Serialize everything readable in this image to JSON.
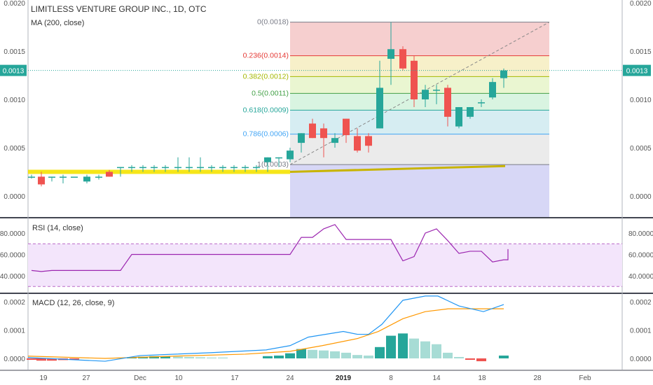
{
  "header": {
    "symbol_line": "LIMITLESS VENTURE GROUP INC., 1D, OTC",
    "ma_label": "MA (200, close)"
  },
  "price_axis": {
    "ticks": [
      "0.0020",
      "0.0015",
      "0.0010",
      "0.0005",
      "0.0000"
    ],
    "current_badge": "0.0013",
    "current_badge_color": "#26a69a"
  },
  "fib": {
    "levels": [
      {
        "label": "0(0.0018)",
        "ratio": 0,
        "color": "#787b86"
      },
      {
        "label": "0.236(0.0014)",
        "ratio": 0.236,
        "color": "#e53935"
      },
      {
        "label": "0.382(0.0012)",
        "ratio": 0.382,
        "color": "#a5b800"
      },
      {
        "label": "0.5(0.0011)",
        "ratio": 0.5,
        "color": "#43a047"
      },
      {
        "label": "0.618(0.0009)",
        "ratio": 0.618,
        "color": "#26a69a"
      },
      {
        "label": "0.786(0.0006)",
        "ratio": 0.786,
        "color": "#42a5f5"
      },
      {
        "label": "1(0.0003)",
        "ratio": 1,
        "color": "#787b86"
      }
    ]
  },
  "rsi": {
    "label": "RSI (14, close)",
    "ticks": [
      "80.0000",
      "60.0000",
      "40.0000"
    ],
    "values": [
      45,
      44,
      45,
      45,
      45,
      45,
      45,
      45,
      45,
      60,
      60,
      60,
      60,
      60,
      60,
      60,
      60,
      60,
      60,
      60,
      60,
      60,
      60,
      60,
      76,
      76,
      84,
      88,
      74,
      74,
      74,
      74,
      74,
      54,
      58,
      80,
      84,
      73,
      61,
      63,
      63,
      53,
      55,
      55,
      58,
      62,
      65
    ]
  },
  "macd": {
    "label": "MACD (12, 26, close, 9)",
    "ticks": [
      "0.0002",
      "0.0001",
      "0.0000"
    ]
  },
  "time_axis": {
    "labels": [
      "19",
      "27",
      "Dec",
      "10",
      "17",
      "24",
      "2019",
      "8",
      "14",
      "18",
      "28",
      "Feb"
    ]
  },
  "colors": {
    "up": "#26a69a",
    "down": "#ef5350",
    "ma": "#f5e300",
    "rsi": "#9c27b0",
    "macd": "#2196f3",
    "signal": "#ff9800"
  }
}
